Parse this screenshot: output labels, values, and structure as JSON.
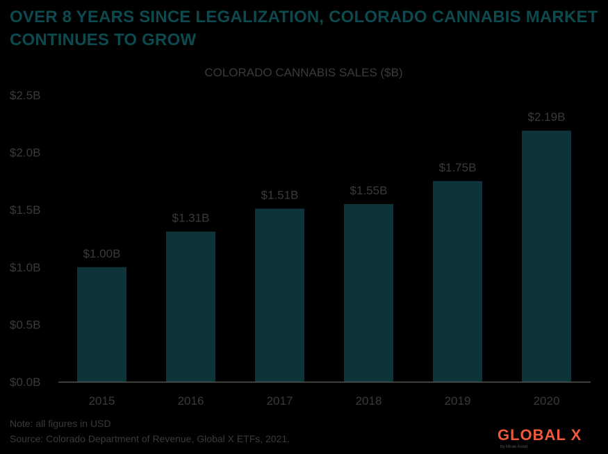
{
  "headline": {
    "line1": "OVER 8 YEARS SINCE LEGALIZATION, COLORADO CANNABIS MARKET",
    "line2": "CONTINUES TO  GROW"
  },
  "chart_data": {
    "type": "bar",
    "title": "COLORADO CANNABIS SALES ($B)",
    "categories": [
      "2015",
      "2016",
      "2017",
      "2018",
      "2019",
      "2020"
    ],
    "values": [
      1.0,
      1.31,
      1.51,
      1.55,
      1.75,
      2.19
    ],
    "value_labels": [
      "$1.00B",
      "$1.31B",
      "$1.51B",
      "$1.55B",
      "$1.75B",
      "$2.19B"
    ],
    "y_ticks": [
      0,
      0.5,
      1.0,
      1.5,
      2.0,
      2.5
    ],
    "y_tick_labels": [
      "$0.0B",
      "$0.5B",
      "$1.0B",
      "$1.5B",
      "$2.0B",
      "$2.5B"
    ],
    "ylim": [
      0,
      2.5
    ],
    "xlabel": "",
    "ylabel": "",
    "grid": false,
    "bar_color": "#0d3438",
    "text_color": "#3a3a3a"
  },
  "footer": {
    "note": "Note: all figures in USD",
    "source": "Source: Colorado Department of Revenue, Global X ETFs, 2021.",
    "logo": "GLOBAL X",
    "logo_sub": "by Mirae Asset"
  }
}
